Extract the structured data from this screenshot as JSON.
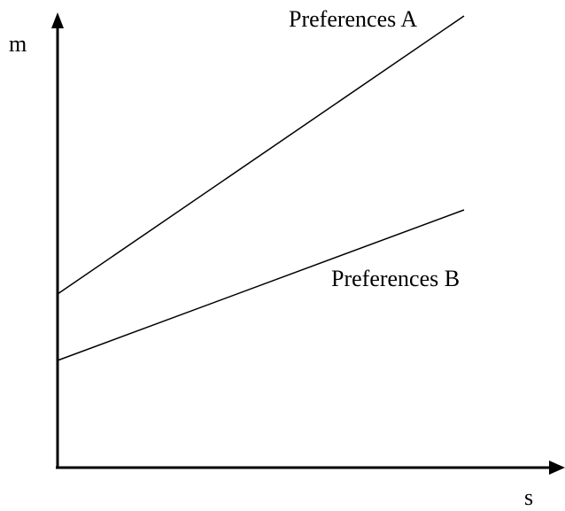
{
  "axes": {
    "y_label": "m",
    "x_label": "s"
  },
  "lines": [
    {
      "label": "Preferences A"
    },
    {
      "label": "Preferences B"
    }
  ],
  "colors": {
    "ink": "#000000",
    "background": "#ffffff"
  }
}
